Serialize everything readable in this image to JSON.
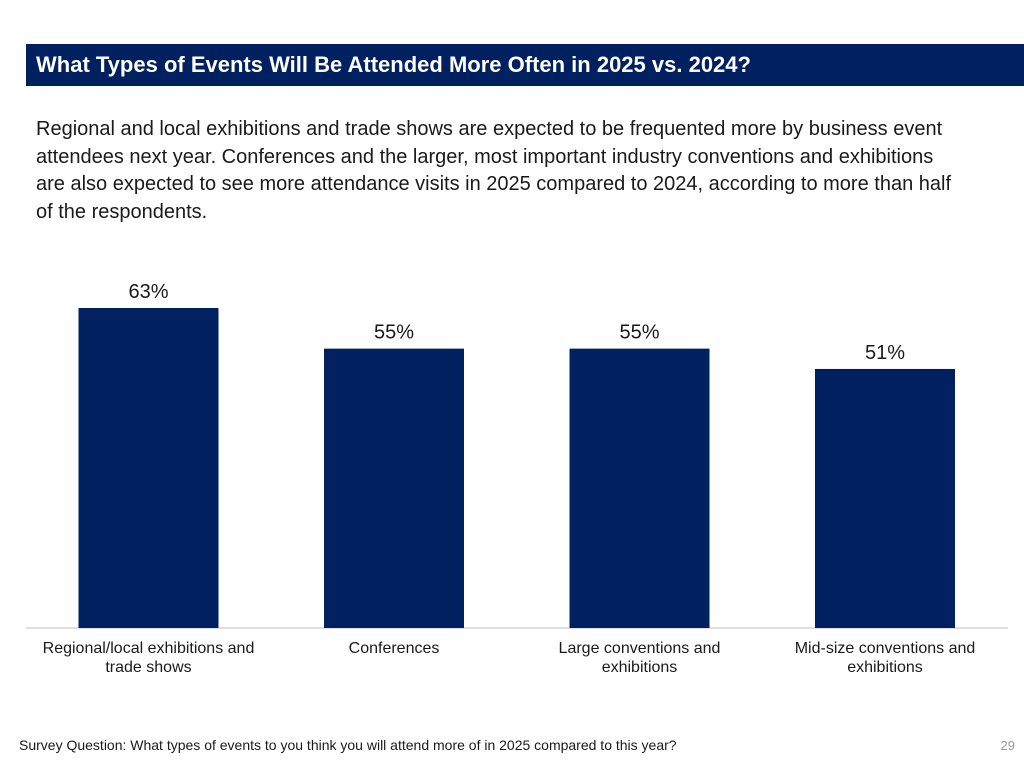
{
  "header": {
    "title": "What Types of Events Will Be Attended More Often in 2025 vs. 2024?"
  },
  "summary": {
    "text": "Regional and local exhibitions and trade shows are expected to be frequented more by business event attendees next year. Conferences and the larger, most important industry conventions and exhibitions are also expected to see more attendance visits in 2025 compared to 2024, according to more than half of the respondents."
  },
  "chart_data": {
    "type": "bar",
    "title": "",
    "xlabel": "",
    "ylabel": "",
    "ylim": [
      0,
      70
    ],
    "grid": false,
    "categories": [
      "Regional/local exhibitions and trade shows",
      "Conferences",
      "Large conventions and exhibitions",
      "Mid-size conventions and exhibitions"
    ],
    "values": [
      63,
      55,
      55,
      51
    ],
    "value_labels": [
      "63%",
      "55%",
      "55%",
      "51%"
    ],
    "bar_color": "#002060"
  },
  "footer": {
    "question": "Survey Question: What types of events to you think you will attend more of in 2025 compared to this year?",
    "page_number": "29"
  },
  "colors": {
    "primary": "#002060",
    "axis": "#bfbfbf"
  }
}
